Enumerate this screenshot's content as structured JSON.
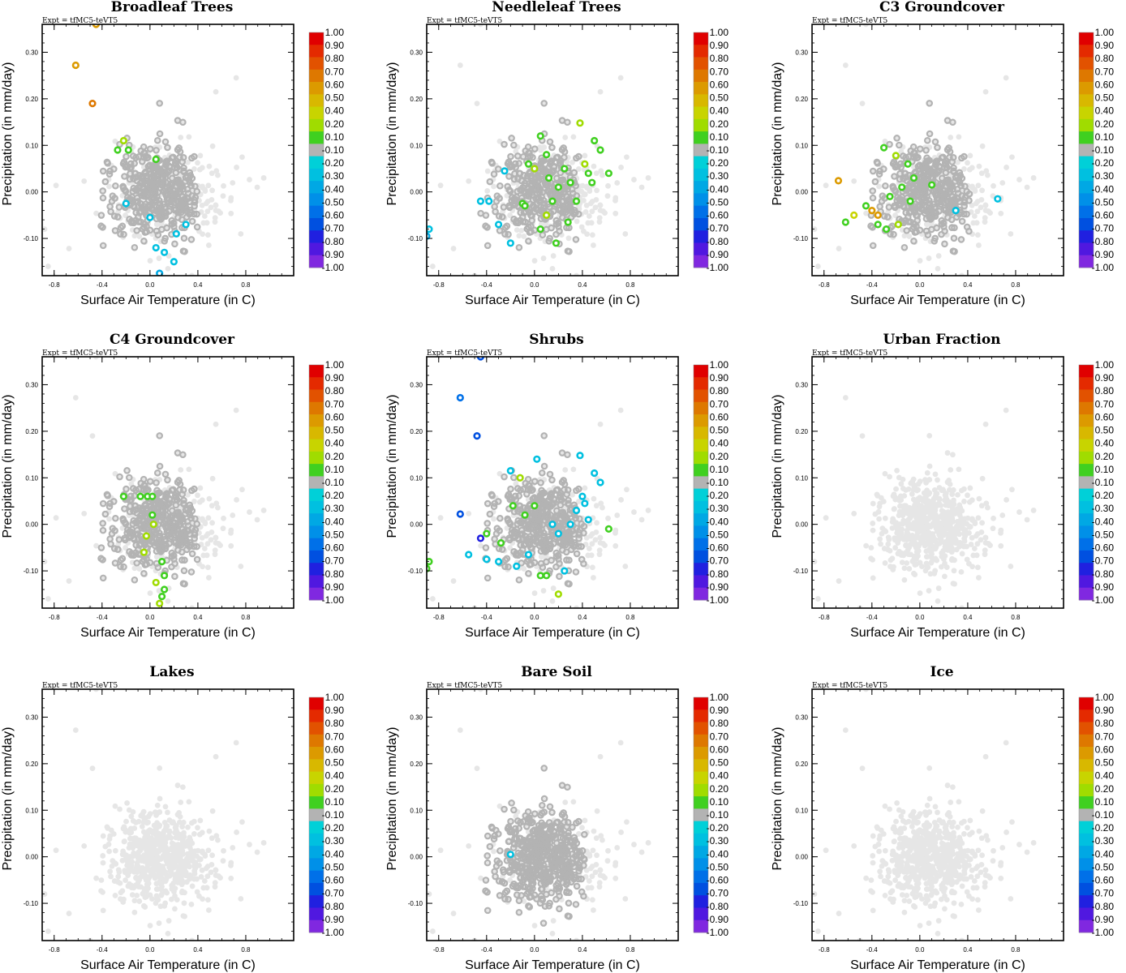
{
  "figure": {
    "panel_titles": [
      "Broadleaf Trees",
      "Needleleaf Trees",
      "C3 Groundcover",
      "C4 Groundcover",
      "Shrubs",
      "Urban Fraction",
      "Lakes",
      "Bare Soil",
      "Ice"
    ],
    "expt_label": "Expt = tfMC5-teVT5",
    "xlabel": "Surface Air Temperature (in C)",
    "ylabel": "Precipitation (in mm/day)",
    "colors": {
      "background_point": "#e6e6e6",
      "gray_point": "#b3b3b3",
      "axis": "#000000"
    }
  },
  "chart_data": {
    "type": "scatter",
    "panels": [
      "Broadleaf Trees",
      "Needleleaf Trees",
      "C3 Groundcover",
      "C4 Groundcover",
      "Shrubs",
      "Urban Fraction",
      "Lakes",
      "Bare Soil",
      "Ice"
    ],
    "xlim": [
      -0.9,
      1.2
    ],
    "ylim": [
      -0.18,
      0.36
    ],
    "xticks": [
      -0.8,
      -0.4,
      0.0,
      0.4,
      0.8
    ],
    "xtick_labels": [
      "-0.8",
      "-0.4",
      "0.0",
      "0.4",
      "0.8"
    ],
    "yticks": [
      0.3,
      0.2,
      0.1,
      0.0,
      -0.1
    ],
    "ytick_labels": [
      "0.30",
      "0.20",
      "0.10",
      "0.00",
      "-0.10"
    ],
    "colorbar": {
      "labels": [
        "1.00",
        "0.90",
        "0.80",
        "0.70",
        "0.60",
        "0.50",
        "0.40",
        "0.20",
        "0.10",
        "-0.10",
        "-0.20",
        "-0.30",
        "-0.40",
        "-0.50",
        "-0.60",
        "-0.70",
        "-0.80",
        "-0.90",
        "-1.00"
      ],
      "colors": [
        "#e00000",
        "#e42a00",
        "#e25200",
        "#de7800",
        "#dc9a00",
        "#d8b800",
        "#c8d400",
        "#a0dc00",
        "#40d020",
        "#b3b3b3",
        "#00d0d8",
        "#00c0e0",
        "#00a8e4",
        "#0090e8",
        "#0070e8",
        "#0050e0",
        "#2020e0",
        "#5018e0",
        "#8028e0"
      ]
    },
    "colored_points": {
      "Broadleaf Trees": [
        {
          "x": -0.62,
          "y": 0.272,
          "c": "#dc9a00"
        },
        {
          "x": -0.48,
          "y": 0.19,
          "c": "#de7800"
        },
        {
          "x": -0.45,
          "y": 0.36,
          "c": "#dc9a00"
        },
        {
          "x": -0.27,
          "y": 0.09,
          "c": "#40d020"
        },
        {
          "x": -0.22,
          "y": 0.11,
          "c": "#a0dc00"
        },
        {
          "x": -0.18,
          "y": 0.09,
          "c": "#40d020"
        },
        {
          "x": 0.05,
          "y": 0.07,
          "c": "#40d020"
        },
        {
          "x": -0.2,
          "y": -0.025,
          "c": "#00c0e0"
        },
        {
          "x": 0.3,
          "y": -0.07,
          "c": "#00c0e0"
        },
        {
          "x": 0.05,
          "y": -0.12,
          "c": "#00c0e0"
        },
        {
          "x": 0.12,
          "y": -0.13,
          "c": "#00c0e0"
        },
        {
          "x": 0.2,
          "y": -0.15,
          "c": "#00c0e0"
        },
        {
          "x": 0.08,
          "y": -0.175,
          "c": "#00a8e4"
        },
        {
          "x": 0.22,
          "y": -0.09,
          "c": "#00c0e0"
        },
        {
          "x": 0.0,
          "y": -0.055,
          "c": "#00c0e0"
        }
      ],
      "Needleleaf Trees": [
        {
          "x": -0.88,
          "y": -0.08,
          "c": "#00c0e0"
        },
        {
          "x": -0.9,
          "y": -0.095,
          "c": "#00a8e4"
        },
        {
          "x": -0.45,
          "y": -0.02,
          "c": "#00c0e0"
        },
        {
          "x": -0.38,
          "y": -0.02,
          "c": "#00c0e0"
        },
        {
          "x": -0.25,
          "y": 0.045,
          "c": "#00c0e0"
        },
        {
          "x": -0.2,
          "y": -0.11,
          "c": "#00c0e0"
        },
        {
          "x": -0.3,
          "y": -0.07,
          "c": "#00c0e0"
        },
        {
          "x": -0.05,
          "y": 0.06,
          "c": "#40d020"
        },
        {
          "x": 0.0,
          "y": 0.05,
          "c": "#a0dc00"
        },
        {
          "x": 0.05,
          "y": 0.12,
          "c": "#40d020"
        },
        {
          "x": 0.1,
          "y": 0.08,
          "c": "#40d020"
        },
        {
          "x": 0.38,
          "y": 0.148,
          "c": "#a0dc00"
        },
        {
          "x": 0.5,
          "y": 0.11,
          "c": "#40d020"
        },
        {
          "x": 0.42,
          "y": 0.06,
          "c": "#a0dc00"
        },
        {
          "x": 0.55,
          "y": 0.09,
          "c": "#40d020"
        },
        {
          "x": 0.25,
          "y": 0.05,
          "c": "#40d020"
        },
        {
          "x": 0.3,
          "y": 0.02,
          "c": "#40d020"
        },
        {
          "x": 0.2,
          "y": 0.01,
          "c": "#40d020"
        },
        {
          "x": 0.15,
          "y": -0.02,
          "c": "#40d020"
        },
        {
          "x": 0.45,
          "y": 0.04,
          "c": "#40d020"
        },
        {
          "x": 0.48,
          "y": 0.02,
          "c": "#40d020"
        },
        {
          "x": 0.35,
          "y": -0.02,
          "c": "#40d020"
        },
        {
          "x": -0.1,
          "y": -0.025,
          "c": "#40d020"
        },
        {
          "x": -0.08,
          "y": -0.03,
          "c": "#40d020"
        },
        {
          "x": 0.1,
          "y": -0.05,
          "c": "#a0dc00"
        },
        {
          "x": 0.05,
          "y": -0.08,
          "c": "#40d020"
        },
        {
          "x": 0.28,
          "y": -0.065,
          "c": "#40d020"
        },
        {
          "x": 0.18,
          "y": -0.11,
          "c": "#40d020"
        },
        {
          "x": 0.12,
          "y": 0.03,
          "c": "#40d020"
        },
        {
          "x": 0.62,
          "y": 0.04,
          "c": "#40d020"
        }
      ],
      "C3 Groundcover": [
        {
          "x": -0.68,
          "y": 0.024,
          "c": "#dc9a00"
        },
        {
          "x": -0.55,
          "y": -0.05,
          "c": "#c8d400"
        },
        {
          "x": -0.4,
          "y": -0.04,
          "c": "#dc9a00"
        },
        {
          "x": -0.35,
          "y": -0.05,
          "c": "#dc9a00"
        },
        {
          "x": -0.3,
          "y": 0.095,
          "c": "#40d020"
        },
        {
          "x": -0.2,
          "y": 0.078,
          "c": "#a0dc00"
        },
        {
          "x": -0.1,
          "y": 0.06,
          "c": "#40d020"
        },
        {
          "x": -0.05,
          "y": 0.03,
          "c": "#40d020"
        },
        {
          "x": -0.15,
          "y": 0.01,
          "c": "#40d020"
        },
        {
          "x": -0.25,
          "y": -0.01,
          "c": "#40d020"
        },
        {
          "x": -0.35,
          "y": -0.07,
          "c": "#40d020"
        },
        {
          "x": -0.28,
          "y": -0.08,
          "c": "#40d020"
        },
        {
          "x": -0.18,
          "y": -0.07,
          "c": "#a0dc00"
        },
        {
          "x": -0.62,
          "y": -0.065,
          "c": "#40d020"
        },
        {
          "x": -0.45,
          "y": -0.03,
          "c": "#40d020"
        },
        {
          "x": 0.1,
          "y": 0.015,
          "c": "#40d020"
        },
        {
          "x": 0.3,
          "y": -0.04,
          "c": "#00c0e0"
        },
        {
          "x": 0.65,
          "y": -0.015,
          "c": "#00c0e0"
        },
        {
          "x": -0.08,
          "y": -0.02,
          "c": "#40d020"
        }
      ],
      "C4 Groundcover": [
        {
          "x": -0.22,
          "y": 0.06,
          "c": "#40d020"
        },
        {
          "x": -0.08,
          "y": 0.06,
          "c": "#40d020"
        },
        {
          "x": -0.02,
          "y": 0.06,
          "c": "#40d020"
        },
        {
          "x": 0.02,
          "y": 0.06,
          "c": "#40d020"
        },
        {
          "x": 0.02,
          "y": 0.02,
          "c": "#40d020"
        },
        {
          "x": 0.03,
          "y": -0.0,
          "c": "#a0dc00"
        },
        {
          "x": -0.03,
          "y": -0.025,
          "c": "#a0dc00"
        },
        {
          "x": -0.05,
          "y": -0.06,
          "c": "#a0dc00"
        },
        {
          "x": 0.1,
          "y": -0.08,
          "c": "#40d020"
        },
        {
          "x": 0.12,
          "y": -0.11,
          "c": "#40d020"
        },
        {
          "x": 0.05,
          "y": -0.125,
          "c": "#a0dc00"
        },
        {
          "x": 0.12,
          "y": -0.14,
          "c": "#40d020"
        },
        {
          "x": 0.08,
          "y": -0.17,
          "c": "#a0dc00"
        },
        {
          "x": 0.1,
          "y": -0.155,
          "c": "#40d020"
        }
      ],
      "Shrubs": [
        {
          "x": -0.62,
          "y": 0.272,
          "c": "#0070e8"
        },
        {
          "x": -0.48,
          "y": 0.19,
          "c": "#0050e0"
        },
        {
          "x": -0.45,
          "y": 0.36,
          "c": "#0050e0"
        },
        {
          "x": -0.62,
          "y": 0.022,
          "c": "#0050e0"
        },
        {
          "x": -0.88,
          "y": -0.08,
          "c": "#40d020"
        },
        {
          "x": -0.9,
          "y": -0.095,
          "c": "#40d020"
        },
        {
          "x": -0.45,
          "y": -0.03,
          "c": "#2020e0"
        },
        {
          "x": -0.4,
          "y": -0.02,
          "c": "#40d020"
        },
        {
          "x": -0.28,
          "y": -0.04,
          "c": "#40d020"
        },
        {
          "x": -0.18,
          "y": 0.04,
          "c": "#40d020"
        },
        {
          "x": -0.12,
          "y": 0.1,
          "c": "#a0dc00"
        },
        {
          "x": -0.08,
          "y": 0.02,
          "c": "#40d020"
        },
        {
          "x": 0.0,
          "y": 0.04,
          "c": "#40d020"
        },
        {
          "x": -0.2,
          "y": 0.115,
          "c": "#00c0e0"
        },
        {
          "x": 0.02,
          "y": 0.14,
          "c": "#00c0e0"
        },
        {
          "x": 0.38,
          "y": 0.148,
          "c": "#00c0e0"
        },
        {
          "x": 0.5,
          "y": 0.11,
          "c": "#00c0e0"
        },
        {
          "x": 0.55,
          "y": 0.09,
          "c": "#00c0e0"
        },
        {
          "x": 0.4,
          "y": 0.06,
          "c": "#00c0e0"
        },
        {
          "x": 0.35,
          "y": 0.03,
          "c": "#00c0e0"
        },
        {
          "x": 0.45,
          "y": 0.01,
          "c": "#00c0e0"
        },
        {
          "x": 0.3,
          "y": 0.0,
          "c": "#00c0e0"
        },
        {
          "x": 0.2,
          "y": -0.02,
          "c": "#00c0e0"
        },
        {
          "x": 0.62,
          "y": -0.01,
          "c": "#40d020"
        },
        {
          "x": 0.25,
          "y": -0.1,
          "c": "#00c0e0"
        },
        {
          "x": 0.2,
          "y": -0.15,
          "c": "#a0dc00"
        },
        {
          "x": 0.05,
          "y": -0.11,
          "c": "#40d020"
        },
        {
          "x": 0.1,
          "y": -0.11,
          "c": "#40d020"
        },
        {
          "x": -0.15,
          "y": -0.09,
          "c": "#00c0e0"
        },
        {
          "x": -0.3,
          "y": -0.08,
          "c": "#00c0e0"
        },
        {
          "x": -0.4,
          "y": -0.075,
          "c": "#00c0e0"
        },
        {
          "x": -0.55,
          "y": -0.065,
          "c": "#00c0e0"
        },
        {
          "x": -0.05,
          "y": -0.065,
          "c": "#00c0e0"
        },
        {
          "x": 0.15,
          "y": 0.0,
          "c": "#00c0e0"
        },
        {
          "x": 0.42,
          "y": 0.045,
          "c": "#00c0e0"
        }
      ],
      "Urban Fraction": [],
      "Lakes": [],
      "Bare Soil": [
        {
          "x": -0.2,
          "y": 0.005,
          "c": "#00c0e0"
        }
      ],
      "Ice": []
    }
  }
}
